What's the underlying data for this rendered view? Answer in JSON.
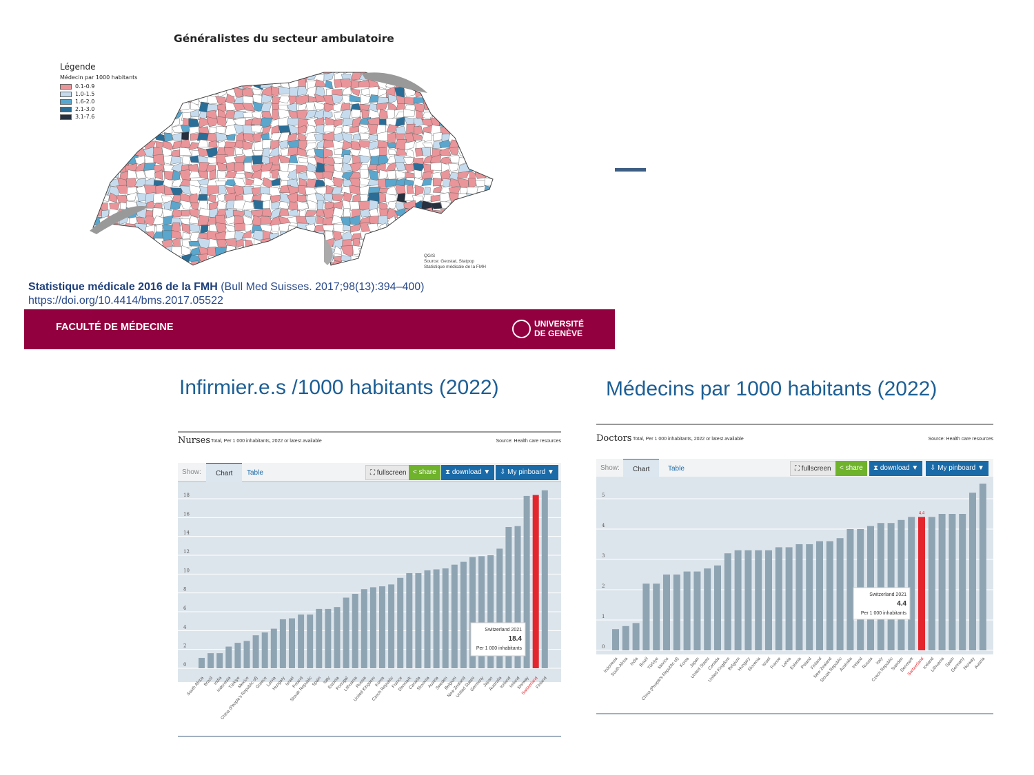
{
  "map": {
    "title": "Généralistes du secteur ambulatoire",
    "legend_title": "Légende",
    "legend_subtitle": "Médecin par 1000 habitants",
    "legend_items": [
      {
        "label": "0.1-0.9",
        "color": "#e9959a"
      },
      {
        "label": "1.0-1.5",
        "color": "#c6dcee"
      },
      {
        "label": "1.6-2.0",
        "color": "#5aa6cc"
      },
      {
        "label": "2.1-3.0",
        "color": "#2a6e98"
      },
      {
        "label": "3.1-7.6",
        "color": "#26303f"
      }
    ],
    "source_lines": [
      "QGIS",
      "Source: Geostat, Statpop",
      "Statistique médicale de la FMH"
    ]
  },
  "citation": {
    "bold": "Statistique médicale 2016 de la FMH",
    "rest": " (Bull Med Suisses. 2017;98(13):394–400)",
    "doi": "https://doi.org/10.4414/bms.2017.05522"
  },
  "footer": {
    "faculty": "FACULTÉ DE MÉDECINE",
    "uni1": "UNIVERSITÉ",
    "uni2": "DE GENÈVE",
    "color": "#93003f"
  },
  "headings": {
    "nurses": "Infirmier.e.s /1000 habitants (2022)",
    "doctors": "Médecins par 1000 habitants (2022)"
  },
  "toolbar": {
    "show": "Show:",
    "chart": "Chart",
    "table": "Table",
    "fullscreen": "fullscreen",
    "share": "share",
    "download": "download ▼",
    "pinboard": "My pinboard ▼"
  },
  "chart_data": [
    {
      "type": "bar",
      "title": "Nurses",
      "subtitle": "Total, Per 1 000 inhabitants, 2022 or latest available",
      "source": "Source: Health care resources",
      "ylim": [
        0,
        18
      ],
      "yticks": [
        0,
        2,
        4,
        6,
        8,
        10,
        12,
        14,
        16,
        18
      ],
      "highlight": "Switzerland",
      "tooltip": {
        "title": "Switzerland 2021",
        "value": "18.4",
        "unit": "Per 1 000 inhabitants"
      },
      "categories": [
        "South Africa",
        "Brazil",
        "India",
        "Indonesia",
        "Türkiye",
        "Mexico",
        "China (People's Republic of)",
        "Greece",
        "Latvia",
        "Hungary",
        "Israel",
        "Poland",
        "Slovak Republic",
        "Spain",
        "Italy",
        "Estonia",
        "Portugal",
        "Lithuania",
        "Russia",
        "United Kingdom",
        "Korea",
        "Czech Republic",
        "France",
        "Denmark",
        "Canada",
        "Slovenia",
        "Austria",
        "Sweden",
        "Belgium",
        "New Zealand",
        "United States",
        "Germany",
        "Japan",
        "Australia",
        "Iceland",
        "Ireland",
        "Norway",
        "Switzerland",
        "Finland"
      ],
      "values": [
        1.1,
        1.6,
        1.6,
        2.3,
        2.7,
        2.9,
        3.5,
        3.8,
        4.2,
        5.2,
        5.3,
        5.7,
        5.7,
        6.3,
        6.3,
        6.5,
        7.5,
        7.9,
        8.4,
        8.6,
        8.7,
        8.9,
        9.6,
        10.1,
        10.1,
        10.4,
        10.5,
        10.6,
        11.0,
        11.3,
        11.8,
        11.9,
        12.0,
        12.7,
        15.0,
        15.1,
        18.3,
        18.4,
        18.9
      ]
    },
    {
      "type": "bar",
      "title": "Doctors",
      "subtitle": "Total, Per 1 000 inhabitants, 2022 or latest available",
      "source": "Source: Health care resources",
      "ylim": [
        0,
        5
      ],
      "yticks": [
        0,
        1,
        2,
        3,
        4,
        5
      ],
      "highlight": "Switzerland",
      "highlight_label": "4.4",
      "tooltip": {
        "title": "Switzerland 2021",
        "value": "4.4",
        "unit": "Per 1 000 inhabitants"
      },
      "categories": [
        "Indonesia",
        "South Africa",
        "India",
        "Brazil",
        "Türkiye",
        "Mexico",
        "China (People's Republic of)",
        "Korea",
        "Japan",
        "United States",
        "Canada",
        "United Kingdom",
        "Belgium",
        "Hungary",
        "Slovenia",
        "Israel",
        "France",
        "Latvia",
        "Estonia",
        "Poland",
        "Finland",
        "New Zealand",
        "Slovak Republic",
        "Australia",
        "Ireland",
        "Russia",
        "Italy",
        "Czech Republic",
        "Sweden",
        "Denmark",
        "Switzerland",
        "Iceland",
        "Lithuania",
        "Spain",
        "Germany",
        "Norway",
        "Austria"
      ],
      "values": [
        0.7,
        0.8,
        0.9,
        2.2,
        2.2,
        2.5,
        2.5,
        2.6,
        2.6,
        2.7,
        2.8,
        3.2,
        3.3,
        3.3,
        3.3,
        3.3,
        3.4,
        3.4,
        3.5,
        3.5,
        3.6,
        3.6,
        3.7,
        4.0,
        4.0,
        4.1,
        4.2,
        4.2,
        4.3,
        4.4,
        4.4,
        4.4,
        4.5,
        4.5,
        4.5,
        5.2,
        5.5
      ]
    }
  ]
}
